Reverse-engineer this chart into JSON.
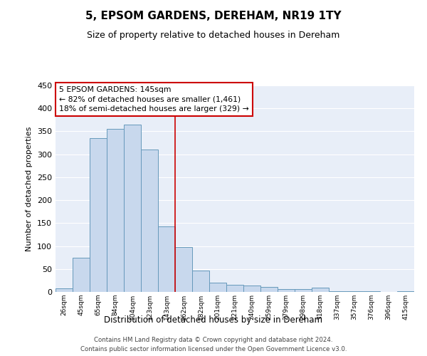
{
  "title": "5, EPSOM GARDENS, DEREHAM, NR19 1TY",
  "subtitle": "Size of property relative to detached houses in Dereham",
  "xlabel": "Distribution of detached houses by size in Dereham",
  "ylabel": "Number of detached properties",
  "bar_color": "#c8d8ed",
  "bar_edge_color": "#6699bb",
  "background_color": "#e8eef8",
  "grid_color": "#ffffff",
  "bin_labels": [
    "26sqm",
    "45sqm",
    "65sqm",
    "84sqm",
    "104sqm",
    "123sqm",
    "143sqm",
    "162sqm",
    "182sqm",
    "201sqm",
    "221sqm",
    "240sqm",
    "259sqm",
    "279sqm",
    "298sqm",
    "318sqm",
    "337sqm",
    "357sqm",
    "376sqm",
    "396sqm",
    "415sqm"
  ],
  "bar_heights": [
    7,
    75,
    335,
    355,
    365,
    310,
    143,
    98,
    46,
    20,
    15,
    14,
    11,
    6,
    6,
    9,
    2,
    2,
    2,
    0,
    2
  ],
  "property_line_color": "#cc0000",
  "property_line_index": 6,
  "annotation_line1": "5 EPSOM GARDENS: 145sqm",
  "annotation_line2": "← 82% of detached houses are smaller (1,461)",
  "annotation_line3": "18% of semi-detached houses are larger (329) →",
  "ylim": [
    0,
    450
  ],
  "yticks": [
    0,
    50,
    100,
    150,
    200,
    250,
    300,
    350,
    400,
    450
  ],
  "footnote1": "Contains HM Land Registry data © Crown copyright and database right 2024.",
  "footnote2": "Contains public sector information licensed under the Open Government Licence v3.0."
}
